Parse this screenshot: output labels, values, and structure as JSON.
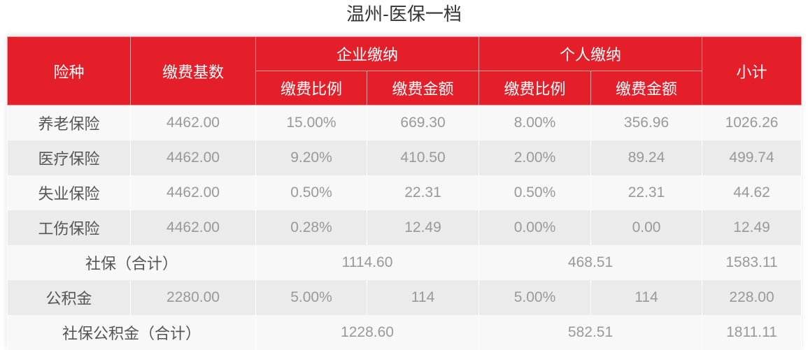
{
  "title": "温州-医保一档",
  "header": {
    "type": "险种",
    "base": "缴费基数",
    "company": "企业缴纳",
    "personal": "个人缴纳",
    "subtotal": "小计",
    "rate": "缴费比例",
    "amount": "缴费金额"
  },
  "rows": [
    {
      "type": "养老保险",
      "base": "4462.00",
      "c_rate": "15.00%",
      "c_amt": "669.30",
      "p_rate": "8.00%",
      "p_amt": "356.96",
      "total": "1026.26"
    },
    {
      "type": "医疗保险",
      "base": "4462.00",
      "c_rate": "9.20%",
      "c_amt": "410.50",
      "p_rate": "2.00%",
      "p_amt": "89.24",
      "total": "499.74"
    },
    {
      "type": "失业保险",
      "base": "4462.00",
      "c_rate": "0.50%",
      "c_amt": "22.31",
      "p_rate": "0.50%",
      "p_amt": "22.31",
      "total": "44.62"
    },
    {
      "type": "工伤保险",
      "base": "4462.00",
      "c_rate": "0.28%",
      "c_amt": "12.49",
      "p_rate": "0.00%",
      "p_amt": "0.00",
      "total": "12.49"
    }
  ],
  "social_total": {
    "label": "社保（合计）",
    "company": "1114.60",
    "personal": "468.51",
    "total": "1583.11"
  },
  "fund": {
    "type": "公积金",
    "base": "2280.00",
    "c_rate": "5.00%",
    "c_amt": "114",
    "p_rate": "5.00%",
    "p_amt": "114",
    "total": "228.00"
  },
  "grand_total": {
    "label": "社保公积金（合计）",
    "company": "1228.60",
    "personal": "582.51",
    "total": "1811.11"
  },
  "colors": {
    "header_red": "#e51f2a"
  }
}
